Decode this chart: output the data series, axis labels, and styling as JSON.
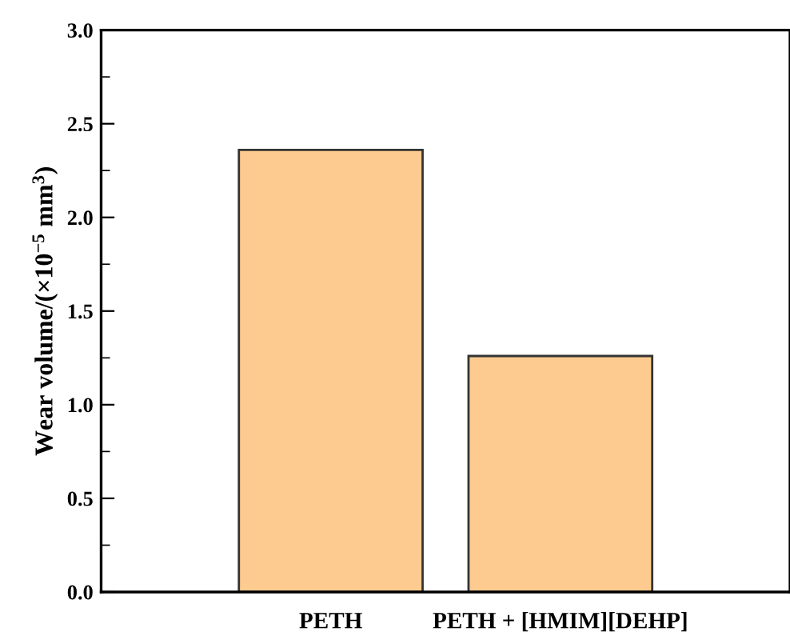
{
  "chart_data": {
    "type": "bar",
    "ylabel": "Wear volume/(×10$^{−5}$ mm$^{3}$)",
    "categories": [
      "PETH",
      "PETH + [HMIM][DEHP]"
    ],
    "values": [
      2.36,
      1.26
    ],
    "color": "#fdcb8f",
    "ylim": [
      0,
      3.0
    ],
    "yticks": [
      {
        "value": 0,
        "label": "0.0"
      },
      {
        "value": 0.5,
        "label": "0.5"
      },
      {
        "value": 1.0,
        "label": "1.0"
      },
      {
        "value": 1.5,
        "label": "1.5"
      },
      {
        "value": 2.0,
        "label": "2.0"
      },
      {
        "value": 2.5,
        "label": "2.5"
      },
      {
        "value": 3.0,
        "label": "3.0"
      }
    ],
    "grid": false
  }
}
